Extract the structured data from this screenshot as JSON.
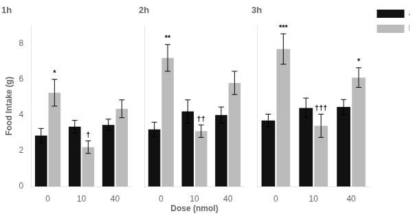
{
  "chart_data": [
    {
      "type": "bar",
      "title": "1h",
      "categories": [
        "0",
        "10",
        "40"
      ],
      "series": [
        {
          "name": "aCSF",
          "color": "#111111",
          "values": [
            2.85,
            3.35,
            3.45
          ],
          "errors": [
            0.4,
            0.35,
            0.32
          ]
        },
        {
          "name": "MCH",
          "color": "#bbbbbb",
          "values": [
            5.25,
            2.2,
            4.35
          ],
          "errors": [
            0.75,
            0.35,
            0.5
          ]
        }
      ],
      "ylabel": "Food Intake (g)",
      "ylim": [
        0,
        9
      ],
      "yticks": [
        0,
        2,
        4,
        6,
        8
      ],
      "grid": false,
      "annotations": [
        {
          "text": "*",
          "series": "MCH",
          "category": "0"
        },
        {
          "text": "†",
          "series": "MCH",
          "category": "10"
        }
      ]
    },
    {
      "type": "bar",
      "title": "2h",
      "categories": [
        "0",
        "10",
        "40"
      ],
      "series": [
        {
          "name": "aCSF",
          "color": "#111111",
          "values": [
            3.2,
            4.2,
            4.0
          ],
          "errors": [
            0.4,
            0.65,
            0.45
          ]
        },
        {
          "name": "MCH",
          "color": "#bbbbbb",
          "values": [
            7.2,
            3.1,
            5.8
          ],
          "errors": [
            0.75,
            0.35,
            0.65
          ]
        }
      ],
      "xlabel": "Dose (nmol)",
      "ylim": [
        0,
        9
      ],
      "yticks": [
        0,
        2,
        4,
        6,
        8
      ],
      "grid": false,
      "tick_labels": "x",
      "annotations": [
        {
          "text": "**",
          "series": "MCH",
          "category": "0"
        },
        {
          "text": "††",
          "series": "MCH",
          "category": "10"
        }
      ]
    },
    {
      "type": "bar",
      "title": "3h",
      "categories": [
        "0",
        "10",
        "40"
      ],
      "series": [
        {
          "name": "aCSF",
          "color": "#111111",
          "values": [
            3.7,
            4.4,
            4.45
          ],
          "errors": [
            0.35,
            0.55,
            0.42
          ]
        },
        {
          "name": "MCH",
          "color": "#bbbbbb",
          "values": [
            7.7,
            3.4,
            6.1
          ],
          "errors": [
            0.85,
            0.65,
            0.55
          ]
        }
      ],
      "ylim": [
        0,
        9
      ],
      "yticks": [
        0,
        2,
        4,
        6,
        8
      ],
      "grid": false,
      "tick_labels": "x",
      "legend": "right",
      "annotations": [
        {
          "text": "***",
          "series": "MCH",
          "category": "0"
        },
        {
          "text": "*",
          "series": "MCH",
          "category": "40"
        },
        {
          "text": "†††",
          "series": "MCH",
          "category": "10"
        }
      ]
    }
  ]
}
